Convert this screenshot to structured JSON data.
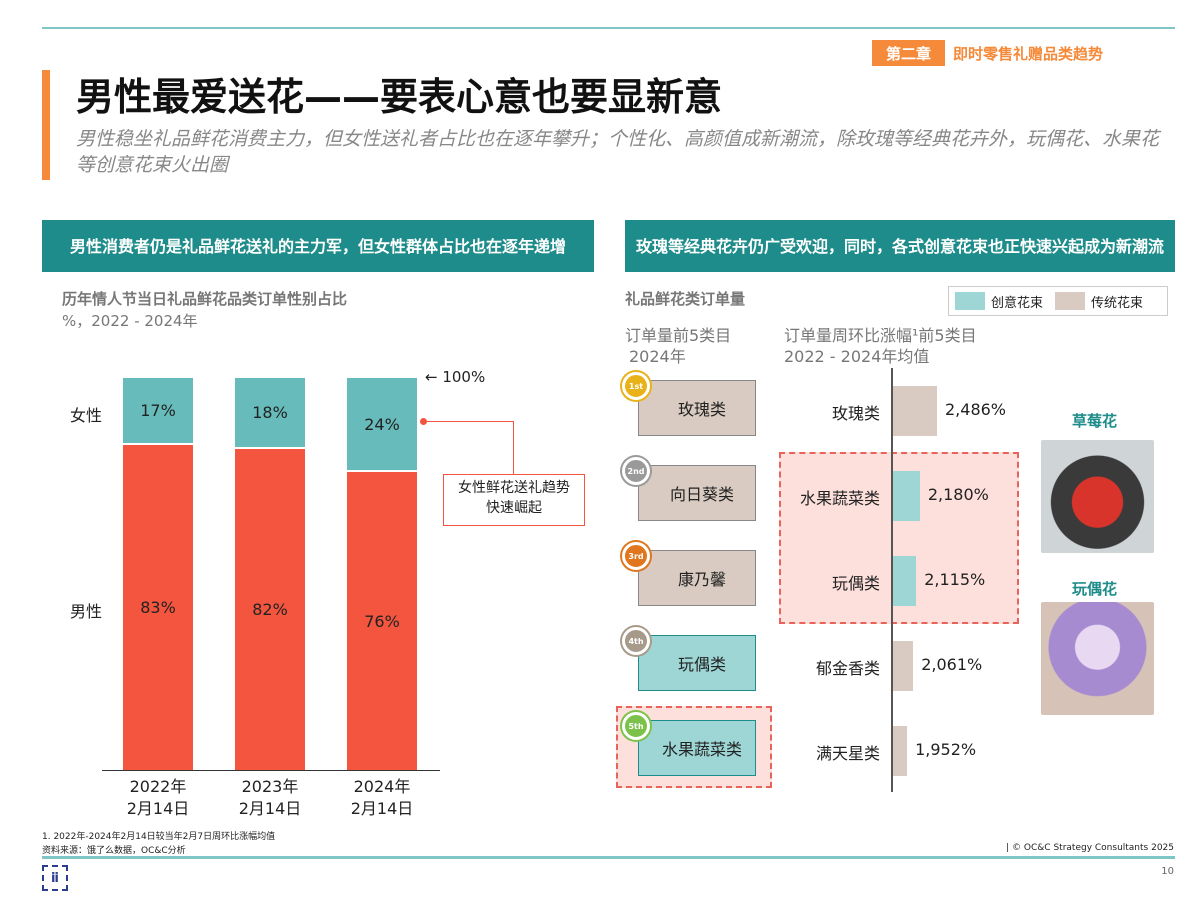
{
  "header": {
    "chapter_num": "第二章",
    "chapter_title": "即时零售礼赠品类趋势",
    "title": "男性最爱送花——要表心意也要显新意",
    "subtitle": "男性稳坐礼品鲜花消费主力，但女性送礼者占比也在逐年攀升；个性化、高颜值成新潮流，除玫瑰等经典花卉外，玩偶花、水果花等创意花束火出圈"
  },
  "left": {
    "section_title": "男性消费者仍是礼品鲜花送礼的主力军，但女性群体占比也在逐年递增",
    "chart_title": "历年情人节当日礼品鲜花品类订单性别占比",
    "chart_sub": "%，2022 - 2024年",
    "label_100": "100%",
    "callout": "女性鲜花送礼趋势快速崛起"
  },
  "right": {
    "section_title": "玫瑰等经典花卉仍广受欢迎，同时，各式创意花束也正快速兴起成为新潮流",
    "chart_title": "礼品鲜花类订单量",
    "legend": [
      "创意花束",
      "传统花束"
    ],
    "col1_title": "订单量前5类目",
    "col1_sub": "2024年",
    "col2_title": "订单量周环比涨幅¹前5类目",
    "col2_sub": "2022 - 2024年均值",
    "photo1_label": "草莓花",
    "photo2_label": "玩偶花"
  },
  "chart_data": [
    {
      "type": "bar",
      "stacked": true,
      "categories": [
        "2022年\n2月14日",
        "2023年\n2月14日",
        "2024年\n2月14日"
      ],
      "series": [
        {
          "name": "男性",
          "values": [
            83,
            82,
            76
          ],
          "color": "#f4553f"
        },
        {
          "name": "女性",
          "values": [
            17,
            18,
            24
          ],
          "color": "#67bcbb"
        }
      ],
      "ylim": [
        0,
        100
      ]
    },
    {
      "type": "table",
      "title": "订单量前5类目 2024年",
      "rows": [
        {
          "rank": "1st",
          "name": "玫瑰类",
          "kind": "传统花束"
        },
        {
          "rank": "2nd",
          "name": "向日葵类",
          "kind": "传统花束"
        },
        {
          "rank": "3rd",
          "name": "康乃馨",
          "kind": "传统花束"
        },
        {
          "rank": "4th",
          "name": "玩偶类",
          "kind": "创意花束"
        },
        {
          "rank": "5th",
          "name": "水果蔬菜类",
          "kind": "创意花束"
        }
      ]
    },
    {
      "type": "bar",
      "orientation": "horizontal",
      "title": "订单量周环比涨幅¹前5类目 2022 - 2024年均值",
      "categories": [
        "玫瑰类",
        "水果蔬菜类",
        "玩偶类",
        "郁金香类",
        "满天星类"
      ],
      "values": [
        2486,
        2180,
        2115,
        2061,
        1952
      ],
      "labels": [
        "2,486%",
        "2,180%",
        "2,115%",
        "2,061%",
        "1,952%"
      ],
      "kinds": [
        "传统花束",
        "创意花束",
        "创意花束",
        "传统花束",
        "传统花束"
      ]
    }
  ],
  "colors": {
    "creative": "#9dd6d5",
    "traditional": "#d9cbc1",
    "accent": "#f58a3a",
    "teal": "#1e8c8a",
    "male": "#f4553f",
    "female": "#67bcbb"
  },
  "footer": {
    "note": "1. 2022年-2024年2月14日较当年2月7日周环比涨幅均值",
    "source": "资料来源：饿了么数据，OC&C分析",
    "copyright": "| © OC&C Strategy Consultants 2025",
    "page": "10"
  }
}
